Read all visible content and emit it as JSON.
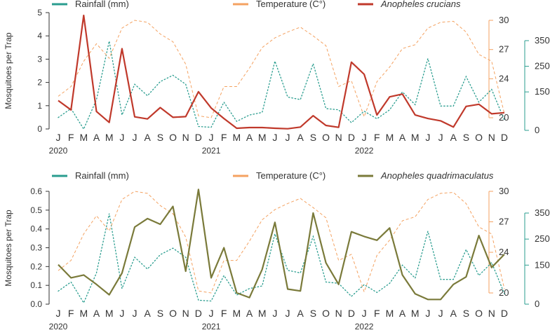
{
  "colors": {
    "rainfall": "#2A9D8F",
    "temperature": "#F4A261",
    "crucians": "#C0392B",
    "quadrimaculatus": "#7A7A3A",
    "axis": "#333333"
  },
  "months": [
    "J",
    "F",
    "M",
    "A",
    "M",
    "J",
    "J",
    "A",
    "S",
    "O",
    "N",
    "D",
    "J",
    "F",
    "M",
    "A",
    "M",
    "J",
    "J",
    "A",
    "S",
    "O",
    "N",
    "D",
    "J",
    "F",
    "M",
    "A",
    "M",
    "J",
    "J",
    "A",
    "S",
    "O",
    "N",
    "D"
  ],
  "years": [
    "2020",
    "2021",
    "2022"
  ],
  "chart_data": [
    {
      "type": "line",
      "ylabel": "Mosquitoes per Trap",
      "ylim": [
        0,
        5
      ],
      "yticks": [
        "0",
        "1",
        "2",
        "3",
        "4",
        "5"
      ],
      "temp_ylim": [
        20,
        30
      ],
      "temp_ticks": [
        "20",
        "24",
        "27",
        "30"
      ],
      "rain_ylim": [
        0,
        350
      ],
      "rain_ticks": [
        "0",
        "150",
        "250",
        "350"
      ],
      "legend": [
        {
          "label": "Rainfall",
          "unit": "(mm)",
          "italic": false
        },
        {
          "label": "Temperature",
          "unit": "(C°)",
          "italic": false
        },
        {
          "label": "Anopheles crucians",
          "unit": "",
          "italic": true
        }
      ],
      "series": [
        {
          "name": "Anopheles crucians",
          "values": [
            1.22,
            0.82,
            4.88,
            0.75,
            0.28,
            3.45,
            0.52,
            0.43,
            0.92,
            0.5,
            0.53,
            1.6,
            0.9,
            0.45,
            0.03,
            0.06,
            0.06,
            0.03,
            0.01,
            0.08,
            0.57,
            0.15,
            0.07,
            2.87,
            2.35,
            0.6,
            1.38,
            1.5,
            0.6,
            0.45,
            0.35,
            0.08,
            0.97,
            1.06,
            0.65,
            0.7
          ]
        },
        {
          "name": "Temperature",
          "values": [
            22.2,
            23.2,
            25.8,
            27.6,
            26.1,
            29.2,
            30.0,
            29.8,
            28.6,
            27.8,
            25.5,
            20.2,
            20.0,
            23.2,
            23.2,
            25.1,
            27.2,
            28.2,
            28.8,
            29.3,
            28.4,
            27.4,
            23.2,
            23.8,
            20.1,
            23.7,
            25.2,
            27.1,
            27.5,
            29.2,
            29.8,
            29.9,
            28.8,
            26.5,
            25.8,
            20.4
          ]
        },
        {
          "name": "Rainfall",
          "values": [
            50,
            85,
            5,
            120,
            348,
            60,
            180,
            135,
            190,
            215,
            180,
            15,
            12,
            110,
            35,
            60,
            70,
            270,
            130,
            120,
            260,
            85,
            80,
            30,
            75,
            45,
            80,
            150,
            100,
            280,
            95,
            95,
            210,
            110,
            160,
            40
          ]
        }
      ]
    },
    {
      "type": "line",
      "ylabel": "Mosquitoes per Trap",
      "ylim": [
        0,
        0.6
      ],
      "yticks": [
        "0.0",
        "0.1",
        "0.2",
        "0.3",
        "0.4",
        "0.5",
        "0.6"
      ],
      "temp_ylim": [
        20,
        30
      ],
      "temp_ticks": [
        "20",
        "24",
        "27",
        "30"
      ],
      "rain_ylim": [
        0,
        350
      ],
      "rain_ticks": [
        "0",
        "150",
        "250",
        "350"
      ],
      "legend": [
        {
          "label": "Rainfall",
          "unit": "(mm)",
          "italic": false
        },
        {
          "label": "Temperature",
          "unit": "(C°)",
          "italic": false
        },
        {
          "label": "Anopheles quadrimaculatus",
          "unit": "",
          "italic": true
        }
      ],
      "series": [
        {
          "name": "Anopheles quadrimaculatus",
          "values": [
            0.21,
            0.14,
            0.155,
            0.105,
            0.05,
            0.165,
            0.41,
            0.455,
            0.425,
            0.52,
            0.175,
            0.61,
            0.14,
            0.3,
            0.06,
            0.035,
            0.185,
            0.435,
            0.08,
            0.07,
            0.485,
            0.22,
            0.105,
            0.385,
            0.36,
            0.34,
            0.405,
            0.155,
            0.055,
            0.025,
            0.025,
            0.105,
            0.145,
            0.365,
            0.195,
            0.265
          ]
        },
        {
          "name": "Temperature",
          "values": [
            22.2,
            23.2,
            25.8,
            27.6,
            26.1,
            29.2,
            30.0,
            29.8,
            28.6,
            27.8,
            25.5,
            20.2,
            20.0,
            23.2,
            23.2,
            25.1,
            27.2,
            28.2,
            28.8,
            29.3,
            28.4,
            27.4,
            23.2,
            23.8,
            20.1,
            23.7,
            25.2,
            27.1,
            27.5,
            29.2,
            29.8,
            29.9,
            28.8,
            26.5,
            25.8,
            20.4
          ]
        },
        {
          "name": "Rainfall",
          "values": [
            50,
            85,
            5,
            120,
            348,
            60,
            180,
            135,
            190,
            215,
            180,
            15,
            12,
            110,
            35,
            60,
            70,
            270,
            130,
            120,
            260,
            85,
            80,
            30,
            75,
            45,
            80,
            150,
            100,
            280,
            95,
            95,
            210,
            110,
            160,
            40
          ]
        }
      ]
    }
  ]
}
